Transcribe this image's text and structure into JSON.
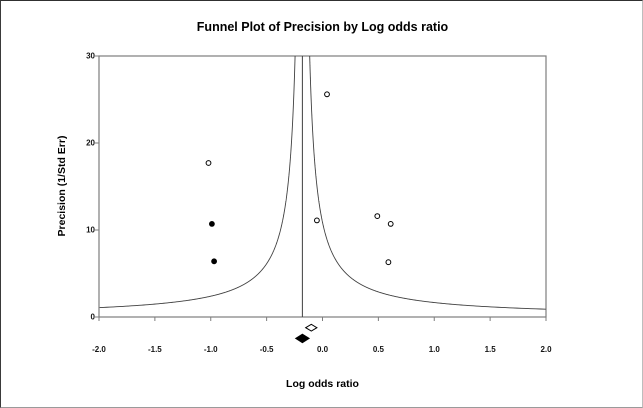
{
  "chart_data": {
    "type": "scatter",
    "subtype": "funnel-plot",
    "title": "Funnel Plot of Precision by Log odds ratio",
    "xlabel": "Log odds ratio",
    "ylabel": "Precision (1/Std Err)",
    "xlim": [
      -2.0,
      2.0
    ],
    "ylim": [
      0,
      30
    ],
    "x_tick_values": [
      -2.0,
      -1.5,
      -1.0,
      -0.5,
      0.0,
      0.5,
      1.0,
      1.5,
      2.0
    ],
    "x_tick_labels": [
      "-2.0",
      "-1.5",
      "-1.0",
      "-0.5",
      "0.0",
      "0.5",
      "1.0",
      "1.5",
      "2.0"
    ],
    "y_tick_values": [
      0,
      10,
      20,
      30
    ],
    "y_tick_labels": [
      "0",
      "10",
      "20",
      "30"
    ],
    "grid": false,
    "legend": "none",
    "center_line_x": -0.18,
    "pseudo_ci_z": 1.96,
    "funnel_min_precision": 0.9,
    "series": [
      {
        "name": "observed-study",
        "marker": "open-circle",
        "points": [
          [
            -1.02,
            17.7
          ],
          [
            0.04,
            25.6
          ],
          [
            -0.05,
            11.1
          ],
          [
            0.49,
            11.6
          ],
          [
            0.61,
            10.7
          ],
          [
            0.59,
            6.3
          ]
        ]
      },
      {
        "name": "imputed-study",
        "marker": "filled-circle",
        "points": [
          [
            -0.99,
            10.7
          ],
          [
            -0.97,
            6.4
          ]
        ]
      }
    ],
    "combined_markers": [
      {
        "name": "observed-combined-effect",
        "marker": "open-diamond",
        "x": -0.1,
        "half_width": 0.05,
        "row": 1
      },
      {
        "name": "adjusted-combined-effect",
        "marker": "filled-diamond",
        "x": -0.18,
        "half_width": 0.06,
        "row": 2
      }
    ],
    "colors": {
      "frame": "#7d7d7d",
      "curve": "#3f3f3f",
      "marker": "#000000",
      "text": "#000000",
      "background": "#ffffff"
    }
  }
}
